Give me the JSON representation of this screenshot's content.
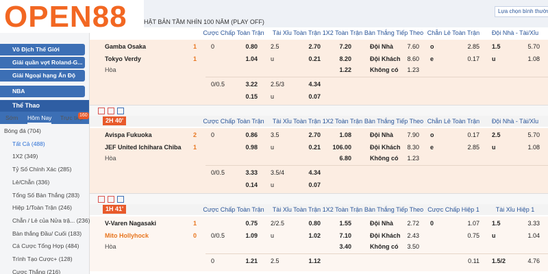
{
  "logo": "OPEN88",
  "league": "HẬT BẢN TẦM NHÌN 100 NĂM (PLAY OFF)",
  "view_option": "Lựa chọn bình thường",
  "sidebar": {
    "menu": [
      "Vô Địch Thế Giới",
      "Giải quần vợt Roland-G...",
      "Giải Ngoại hạng Ấn Độ",
      "NBA"
    ],
    "sport": "Thể Thao",
    "tabs": [
      "Sớm",
      "Hôm Nay",
      "Trực tiếp"
    ],
    "live_badge": "160",
    "items": [
      "Bóng đá (704)",
      "Tất Cả (488)",
      "1X2 (349)",
      "Tỷ Số Chính Xác (285)",
      "Lẻ/Chẵn (336)",
      "Tổng Số Bàn Thắng (283)",
      "Hiệp 1/Toàn Trận (246)",
      "Chẵn / Lẻ của Nửa trậ... (236)",
      "Bàn thắng Đầu/ Cuối (183)",
      "Cá Cược Tổng Hợp (484)",
      "Trình Tạo Cược+ (128)",
      "Cược Thắng (216)"
    ]
  },
  "matches": [
    {
      "time": null,
      "headers": [
        "Cược Chấp Toàn Trận",
        "Tài Xỉu Toàn Trận",
        "1X2 Toàn Trận",
        "Bàn Thắng Tiếp Theo",
        "Chẵn Lẻ Toàn Trận",
        "Đội Nhà - Tài/Xỉu"
      ],
      "teams": [
        {
          "name": "Gamba Osaka",
          "score": "1"
        },
        {
          "name": "Tokyo Verdy",
          "score": "1"
        }
      ],
      "draw": "Hòa",
      "rows": [
        [
          "0",
          "0.80",
          "2.5",
          "2.70",
          "7.20",
          "Đội Nhà",
          "7.60",
          "o",
          "2.85",
          "1.5",
          "5.70"
        ],
        [
          null,
          "1.04",
          "u",
          "0.21",
          "8.20",
          "Đội Khách",
          "8.60",
          "e",
          "0.17",
          "u",
          "1.08"
        ],
        [
          null,
          null,
          null,
          null,
          "1.22",
          "Không có",
          "1.23",
          null,
          null,
          null,
          null
        ],
        [
          "0/0.5",
          "3.22",
          "2.5/3",
          "4.34",
          null,
          null,
          null,
          null,
          null,
          null,
          null
        ],
        [
          null,
          "0.15",
          "u",
          "0.07",
          null,
          null,
          null,
          null,
          null,
          null,
          null
        ]
      ]
    },
    {
      "time": "2H 40'",
      "headers": [
        "Cược Chấp Toàn Trận",
        "Tài Xỉu Toàn Trận",
        "1X2 Toàn Trận",
        "Bàn Thắng Tiếp Theo",
        "Chẵn Lẻ Toàn Trận",
        "Đội Nhà - Tài/Xỉu"
      ],
      "teams": [
        {
          "name": "Avispa Fukuoka",
          "score": "2"
        },
        {
          "name": "JEF United Ichihara Chiba",
          "score": "1"
        }
      ],
      "draw": "Hòa",
      "rows": [
        [
          "0",
          "0.86",
          "3.5",
          "2.70",
          "1.08",
          "Đội Nhà",
          "7.90",
          "o",
          "0.17",
          "2.5",
          "5.70"
        ],
        [
          null,
          "0.98",
          "u",
          "0.21",
          "106.00",
          "Đội Khách",
          "8.30",
          "e",
          "2.85",
          "u",
          "1.08"
        ],
        [
          null,
          null,
          null,
          null,
          "6.80",
          "Không có",
          "1.23",
          null,
          null,
          null,
          null
        ],
        [
          "0/0.5",
          "3.33",
          "3.5/4",
          "4.34",
          null,
          null,
          null,
          null,
          null,
          null,
          null
        ],
        [
          null,
          "0.14",
          "u",
          "0.07",
          null,
          null,
          null,
          null,
          null,
          null,
          null
        ]
      ]
    },
    {
      "time": "1H 41'",
      "headers": [
        "Cược Chấp Toàn Trận",
        "Tài Xỉu Toàn Trận",
        "1X2 Toàn Trận",
        "Bàn Thắng Tiếp Theo",
        "Cược Chấp Hiệp 1",
        "Tài Xỉu Hiệp 1"
      ],
      "teams": [
        {
          "name": "V-Varen Nagasaki",
          "score": "1"
        },
        {
          "name": "Mito Hollyhock",
          "score": "0"
        }
      ],
      "draw": "Hòa",
      "rows": [
        [
          null,
          "0.75",
          "2/2.5",
          "0.80",
          "1.55",
          "Đội Nhà",
          "2.72",
          "0",
          "1.07",
          "1.5",
          "3.33"
        ],
        [
          "0/0.5",
          "1.09",
          "u",
          "1.02",
          "7.10",
          "Đội Khách",
          "2.43",
          null,
          "0.75",
          "u",
          "1.04"
        ],
        [
          null,
          null,
          null,
          null,
          "3.40",
          "Không có",
          "3.50",
          null,
          null,
          null,
          null
        ],
        [
          "0",
          "1.21",
          "2.5",
          "1.12",
          null,
          null,
          null,
          null,
          "0.11",
          "1.5/2",
          "4.76"
        ]
      ]
    }
  ]
}
